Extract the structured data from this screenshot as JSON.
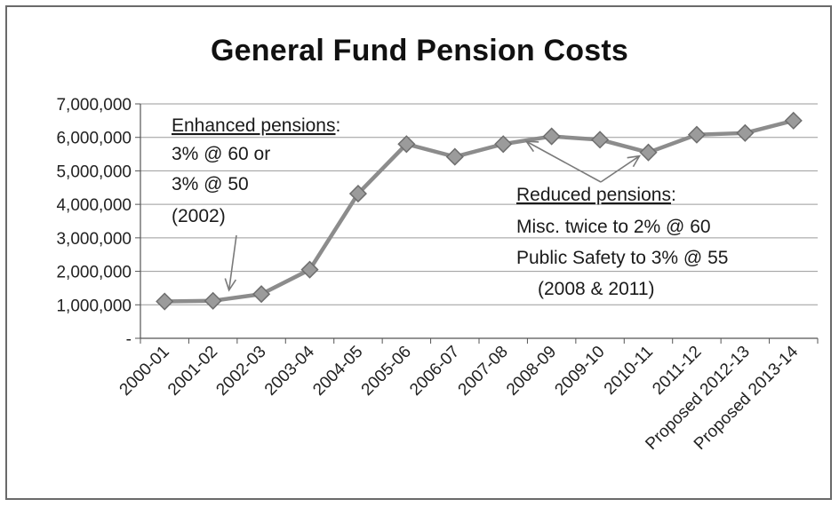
{
  "chart_data": {
    "type": "line",
    "title": "General Fund Pension Costs",
    "xlabel": "",
    "ylabel": "",
    "ylim": [
      0,
      7000000
    ],
    "y_ticks": [
      "-",
      "1,000,000",
      "2,000,000",
      "3,000,000",
      "4,000,000",
      "5,000,000",
      "6,000,000",
      "7,000,000"
    ],
    "y_tick_values": [
      0,
      1000000,
      2000000,
      3000000,
      4000000,
      5000000,
      6000000,
      7000000
    ],
    "grid": true,
    "legend": "none",
    "categories": [
      "2000-01",
      "2001-02",
      "2002-03",
      "2003-04",
      "2004-05",
      "2005-06",
      "2006-07",
      "2007-08",
      "2008-09",
      "2009-10",
      "2010-11",
      "2011-12",
      "Proposed 2012-13",
      "Proposed 2013-14"
    ],
    "series": [
      {
        "values": [
          1100000,
          1120000,
          1320000,
          2050000,
          4320000,
          5800000,
          5420000,
          5800000,
          6030000,
          5930000,
          5550000,
          6080000,
          6130000,
          6500000
        ],
        "color": "#8c8c8c"
      }
    ],
    "annotations": {
      "enhanced": {
        "heading": "Enhanced pensions",
        "colon": ":",
        "lines": [
          "3% @ 60 or",
          "3% @ 50",
          "(2002)"
        ],
        "points_to_category": "2001-02"
      },
      "reduced": {
        "heading": "Reduced pensions",
        "colon": ":",
        "lines": [
          "Misc. twice to 2% @ 60",
          "Public Safety to 3% @ 55",
          "(2008 & 2011)"
        ],
        "points_to_categories": [
          "2007-08",
          "2010-11"
        ]
      }
    }
  }
}
